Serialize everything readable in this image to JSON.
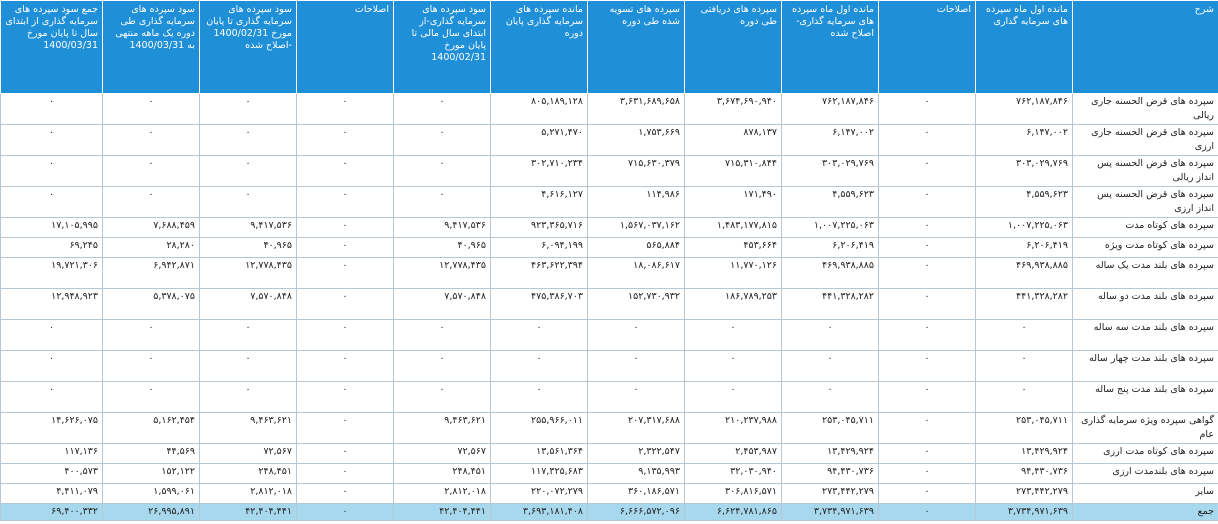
{
  "headers": [
    "شرح",
    "مانده اول ماه سپرده های سرمایه گذاری",
    "اصلاحات",
    "مانده اول ماه سپرده های سرمایه گذاری- اصلاح شده",
    "سپرده های دریافتی طی دوره",
    "سپرده های تسویه شده طی دوره",
    "مانده سپرده های سرمایه گذاری پایان دوره",
    "سود سپرده های سرمایه گذاری-از ابتدای سال مالی تا پایان مورخ 1400/02/31",
    "اصلاحات",
    "سود سپرده های سرمایه گذاری تا پایان مورخ 1400/02/31 -اصلاح شده",
    "سود سپرده های سرمایه گذاری طی دوره یک ماهه منتهی به 1400/03/31",
    "جمع سود سپرده های سرمایه گذاری از ابتدای سال تا پایان مورخ 1400/03/31"
  ],
  "rows": [
    [
      "سپرده های قرض الحسنه جاری ریالی",
      "۷۶۲,۱۸۷,۸۴۶",
      "۰",
      "۷۶۲,۱۸۷,۸۴۶",
      "۳,۶۷۴,۶۹۰,۹۴۰",
      "۳,۶۳۱,۶۸۹,۶۵۸",
      "۸۰۵,۱۸۹,۱۲۸",
      "۰",
      "۰",
      "۰",
      "۰",
      "۰"
    ],
    [
      "سپرده های قرض الحسنه جاری ارزی",
      "۶,۱۴۷,۰۰۲",
      "۰",
      "۶,۱۴۷,۰۰۲",
      "۸۷۸,۱۳۷",
      "۱,۷۵۳,۶۶۹",
      "۵,۲۷۱,۴۷۰",
      "۰",
      "۰",
      "۰",
      "۰",
      "۰"
    ],
    [
      "سپرده های قرض الحسنه پس انداز ریالی",
      "۳۰۳,۰۲۹,۷۶۹",
      "۰",
      "۳۰۳,۰۲۹,۷۶۹",
      "۷۱۵,۳۱۰,۸۴۴",
      "۷۱۵,۶۳۰,۳۷۹",
      "۳۰۲,۷۱۰,۲۳۴",
      "۰",
      "۰",
      "۰",
      "۰",
      "۰"
    ],
    [
      "سپرده های قرض الحسنه پس انداز ارزی",
      "۴,۵۵۹,۶۲۳",
      "۰",
      "۴,۵۵۹,۶۲۳",
      "۱۷۱,۴۹۰",
      "۱۱۴,۹۸۶",
      "۴,۶۱۶,۱۲۷",
      "۰",
      "۰",
      "۰",
      "۰",
      "۰"
    ],
    [
      "سپرده های کوتاه مدت",
      "۱,۰۰۷,۲۲۵,۰۶۳",
      "۰",
      "۱,۰۰۷,۲۲۵,۰۶۳",
      "۱,۴۸۳,۱۷۷,۸۱۵",
      "۱,۵۶۷,۰۳۷,۱۶۲",
      "۹۲۳,۳۶۵,۷۱۶",
      "۹,۴۱۷,۵۳۶",
      "۰",
      "۹,۴۱۷,۵۳۶",
      "۷,۶۸۸,۴۵۹",
      "۱۷,۱۰۵,۹۹۵"
    ],
    [
      "سپرده های کوتاه مدت ویژه",
      "۶,۲۰۶,۴۱۹",
      "۰",
      "۶,۲۰۶,۴۱۹",
      "۴۵۳,۶۶۴",
      "۵۶۵,۸۸۴",
      "۶,۰۹۴,۱۹۹",
      "۴۰,۹۶۵",
      "۰",
      "۴۰,۹۶۵",
      "۲۸,۲۸۰",
      "۶۹,۲۴۵"
    ],
    [
      "سپرده های بلند مدت یک ساله",
      "۴۶۹,۹۳۸,۸۸۵",
      "۰",
      "۴۶۹,۹۳۸,۸۸۵",
      "۱۱,۷۷۰,۱۲۶",
      "۱۸,۰۸۶,۶۱۷",
      "۴۶۳,۶۲۲,۳۹۴",
      "۱۲,۷۷۸,۴۳۵",
      "۰",
      "۱۲,۷۷۸,۴۳۵",
      "۶,۹۴۲,۸۷۱",
      "۱۹,۷۲۱,۳۰۶"
    ],
    [
      "سپرده های بلند مدت دو ساله",
      "۴۴۱,۳۲۸,۲۸۲",
      "۰",
      "۴۴۱,۳۲۸,۲۸۲",
      "۱۸۶,۷۸۹,۲۵۳",
      "۱۵۲,۷۳۰,۹۳۲",
      "۴۷۵,۳۸۶,۷۰۳",
      "۷,۵۷۰,۸۴۸",
      "۰",
      "۷,۵۷۰,۸۴۸",
      "۵,۳۷۸,۰۷۵",
      "۱۲,۹۴۸,۹۲۳"
    ],
    [
      "سپرده های بلند مدت سه ساله",
      "۰",
      "۰",
      "۰",
      "۰",
      "۰",
      "۰",
      "۰",
      "۰",
      "۰",
      "۰",
      "۰"
    ],
    [
      "سپرده های بلند مدت چهار ساله",
      "۰",
      "۰",
      "۰",
      "۰",
      "۰",
      "۰",
      "۰",
      "۰",
      "۰",
      "۰",
      "۰"
    ],
    [
      "سپرده های بلند مدت پنج ساله",
      "۰",
      "۰",
      "۰",
      "۰",
      "۰",
      "۰",
      "۰",
      "۰",
      "۰",
      "۰",
      "۰"
    ],
    [
      "گواهی سپرده ویژه سرمایه گذاری عام",
      "۲۵۳,۰۴۵,۷۱۱",
      "۰",
      "۲۵۳,۰۴۵,۷۱۱",
      "۲۱۰,۲۳۷,۹۸۸",
      "۲۰۷,۳۱۷,۶۸۸",
      "۲۵۵,۹۶۶,۰۱۱",
      "۹,۴۶۳,۶۲۱",
      "۰",
      "۹,۴۶۳,۶۲۱",
      "۵,۱۶۲,۴۵۴",
      "۱۴,۶۲۶,۰۷۵"
    ],
    [
      "سپرده های کوتاه مدت ارزی",
      "۱۳,۴۲۹,۹۲۴",
      "۰",
      "۱۳,۴۲۹,۹۲۴",
      "۲,۴۵۳,۹۸۷",
      "۲,۳۲۲,۵۴۷",
      "۱۳,۵۶۱,۳۶۴",
      "۷۲,۵۶۷",
      "۰",
      "۷۲,۵۶۷",
      "۴۴,۵۶۹",
      "۱۱۷,۱۳۶"
    ],
    [
      "سپرده های بلندمدت ارزی",
      "۹۴,۴۳۰,۷۳۶",
      "۰",
      "۹۴,۴۳۰,۷۳۶",
      "۳۲,۰۳۰,۹۴۰",
      "۹,۱۳۵,۹۹۳",
      "۱۱۷,۳۲۵,۶۸۳",
      "۲۴۸,۴۵۱",
      "۰",
      "۲۴۸,۴۵۱",
      "۱۵۲,۱۲۲",
      "۴۰۰,۵۷۳"
    ],
    [
      "سایر",
      "۲۷۳,۴۴۲,۲۷۹",
      "۰",
      "۲۷۳,۴۴۲,۲۷۹",
      "۳۰۶,۸۱۶,۵۷۱",
      "۳۶۰,۱۸۶,۵۷۱",
      "۲۲۰,۰۷۲,۲۷۹",
      "۲,۸۱۲,۰۱۸",
      "۰",
      "۲,۸۱۲,۰۱۸",
      "۱,۵۹۹,۰۶۱",
      "۴,۴۱۱,۰۷۹"
    ]
  ],
  "total": [
    "جمع",
    "۳,۷۳۴,۹۷۱,۶۳۹",
    "۰",
    "۳,۷۳۴,۹۷۱,۶۳۹",
    "۶,۶۲۴,۷۸۱,۸۶۵",
    "۶,۶۶۶,۵۷۲,۰۹۶",
    "۳,۶۹۳,۱۸۱,۴۰۸",
    "۴۲,۴۰۴,۴۴۱",
    "۰",
    "۴۲,۴۰۴,۴۴۱",
    "۲۶,۹۹۵,۸۹۱",
    "۶۹,۴۰۰,۳۳۲"
  ],
  "colors": {
    "header_bg": "#1f8fd8",
    "total_bg": "#a8d8ee",
    "grid": "#b9c7d3"
  }
}
